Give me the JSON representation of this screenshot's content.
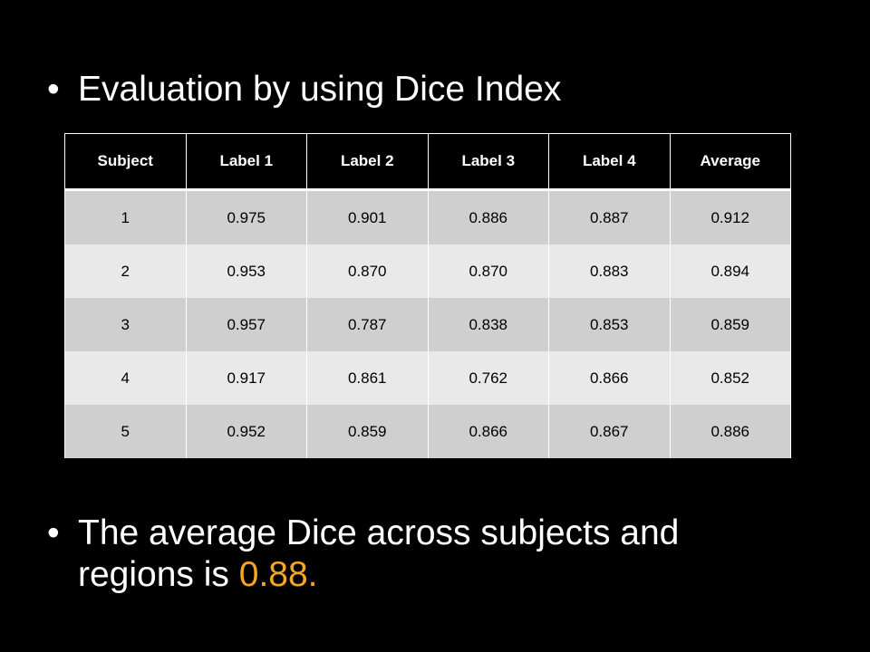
{
  "bullets": {
    "first": "Evaluation by using Dice Index",
    "second_prefix": "The average Dice across subjects and regions  is ",
    "second_highlight": "0.88."
  },
  "colors": {
    "background": "#000000",
    "text": "#ffffff",
    "highlight": "#f5a623",
    "row_odd": "#cfcfcf",
    "row_even": "#e9e9e9"
  },
  "table": {
    "headers": [
      "Subject",
      "Label 1",
      "Label 2",
      "Label 3",
      "Label 4",
      "Average"
    ],
    "rows": [
      [
        "1",
        "0.975",
        "0.901",
        "0.886",
        "0.887",
        "0.912"
      ],
      [
        "2",
        "0.953",
        "0.870",
        "0.870",
        "0.883",
        "0.894"
      ],
      [
        "3",
        "0.957",
        "0.787",
        "0.838",
        "0.853",
        "0.859"
      ],
      [
        "4",
        "0.917",
        "0.861",
        "0.762",
        "0.866",
        "0.852"
      ],
      [
        "5",
        "0.952",
        "0.859",
        "0.866",
        "0.867",
        "0.886"
      ]
    ]
  }
}
